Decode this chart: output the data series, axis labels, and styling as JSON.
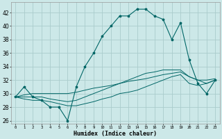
{
  "title": "",
  "xlabel": "Humidex (Indice chaleur)",
  "background_color": "#cce8e8",
  "grid_color": "#aacccc",
  "line_color": "#006666",
  "x_values": [
    0,
    1,
    2,
    3,
    4,
    5,
    6,
    7,
    8,
    9,
    10,
    11,
    12,
    13,
    14,
    15,
    16,
    17,
    18,
    19,
    20,
    21,
    22,
    23
  ],
  "main_line": [
    29.5,
    31.0,
    29.5,
    29.0,
    28.0,
    28.0,
    26.0,
    31.0,
    34.0,
    36.0,
    38.5,
    40.0,
    41.5,
    41.5,
    42.5,
    42.5,
    41.5,
    41.0,
    38.0,
    40.5,
    35.0,
    31.5,
    30.0,
    32.0
  ],
  "min_line": [
    29.5,
    29.2,
    29.0,
    29.0,
    28.8,
    28.5,
    28.2,
    28.2,
    28.5,
    28.8,
    29.2,
    29.5,
    30.0,
    30.2,
    30.5,
    31.0,
    31.5,
    32.0,
    32.5,
    32.8,
    31.5,
    31.2,
    31.5,
    32.0
  ],
  "mean_line": [
    29.5,
    29.8,
    30.0,
    30.0,
    30.0,
    30.0,
    30.0,
    30.2,
    30.5,
    30.8,
    31.0,
    31.2,
    31.5,
    31.8,
    32.0,
    32.2,
    32.5,
    32.8,
    33.0,
    33.2,
    32.5,
    32.0,
    32.0,
    32.2
  ],
  "line3": [
    29.5,
    29.5,
    29.5,
    29.5,
    29.2,
    29.0,
    28.8,
    29.0,
    29.5,
    30.0,
    30.5,
    31.0,
    31.5,
    32.0,
    32.5,
    33.0,
    33.2,
    33.5,
    33.5,
    33.5,
    32.5,
    32.0,
    31.5,
    32.0
  ],
  "ylim": [
    25.5,
    43.5
  ],
  "yticks": [
    26,
    28,
    30,
    32,
    34,
    36,
    38,
    40,
    42
  ],
  "xlim": [
    -0.5,
    23.5
  ]
}
